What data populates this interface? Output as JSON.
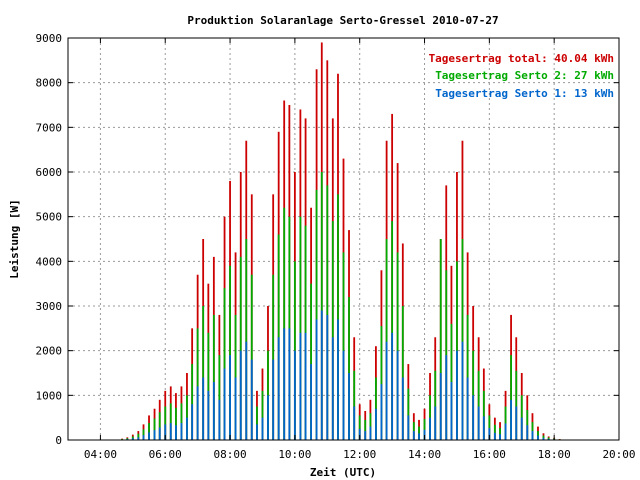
{
  "chart_data": {
    "type": "bar",
    "title": "Produktion Solaranlage Serto-Gressel 2010-07-27",
    "xlabel": "Zeit (UTC)",
    "ylabel": "Leistung [W]",
    "xlim": [
      3,
      20
    ],
    "ylim": [
      0,
      9000
    ],
    "x_ticks": [
      {
        "value": 4,
        "label": "04:00"
      },
      {
        "value": 6,
        "label": "06:00"
      },
      {
        "value": 8,
        "label": "08:00"
      },
      {
        "value": 10,
        "label": "10:00"
      },
      {
        "value": 12,
        "label": "12:00"
      },
      {
        "value": 14,
        "label": "14:00"
      },
      {
        "value": 16,
        "label": "16:00"
      },
      {
        "value": 18,
        "label": "18:00"
      },
      {
        "value": 20,
        "label": "20:00"
      }
    ],
    "y_ticks": [
      0,
      1000,
      2000,
      3000,
      4000,
      5000,
      6000,
      7000,
      8000,
      9000
    ],
    "grid": true,
    "legend_position": "top-right",
    "legend": [
      {
        "label": "Tagesertrag total: 40.04 kWh",
        "color": "#cc0000"
      },
      {
        "label": "Tagesertrag Serto 2: 27 kWh",
        "color": "#00aa00"
      },
      {
        "label": "Tagesertrag Serto 1: 13 kWh",
        "color": "#0066cc"
      }
    ],
    "series": [
      {
        "name": "Tagesertrag total: 40.04 kWh",
        "color": "#cc0000",
        "x": [
          4.5,
          4.67,
          4.83,
          5.0,
          5.17,
          5.33,
          5.5,
          5.67,
          5.83,
          6.0,
          6.17,
          6.33,
          6.5,
          6.67,
          6.83,
          7.0,
          7.17,
          7.33,
          7.5,
          7.67,
          7.83,
          8.0,
          8.17,
          8.33,
          8.5,
          8.67,
          8.83,
          9.0,
          9.17,
          9.33,
          9.5,
          9.67,
          9.83,
          10.0,
          10.17,
          10.33,
          10.5,
          10.67,
          10.83,
          11.0,
          11.17,
          11.33,
          11.5,
          11.67,
          11.83,
          12.0,
          12.17,
          12.33,
          12.5,
          12.67,
          12.83,
          13.0,
          13.17,
          13.33,
          13.5,
          13.67,
          13.83,
          14.0,
          14.17,
          14.33,
          14.5,
          14.67,
          14.83,
          15.0,
          15.17,
          15.33,
          15.5,
          15.67,
          15.83,
          16.0,
          16.17,
          16.33,
          16.5,
          16.67,
          16.83,
          17.0,
          17.17,
          17.33,
          17.5,
          17.67,
          17.83,
          18.0,
          18.17,
          18.33,
          18.5,
          18.67,
          18.83,
          19.0
        ],
        "values": [
          10,
          30,
          60,
          120,
          200,
          350,
          550,
          700,
          900,
          1100,
          1200,
          1050,
          1200,
          1500,
          2500,
          3700,
          4500,
          3500,
          4100,
          2800,
          5000,
          5800,
          4200,
          6000,
          6700,
          5500,
          1100,
          1600,
          3000,
          5500,
          6900,
          7600,
          7500,
          6000,
          7400,
          7200,
          5200,
          8300,
          8900,
          8500,
          7200,
          8200,
          6300,
          4700,
          2300,
          800,
          650,
          900,
          2100,
          3800,
          6700,
          7300,
          6200,
          4400,
          1700,
          600,
          450,
          700,
          1500,
          2300,
          4500,
          5700,
          3900,
          6000,
          6700,
          4200,
          3000,
          2300,
          1600,
          800,
          500,
          400,
          1100,
          2800,
          2300,
          1500,
          1000,
          600,
          300,
          150,
          80,
          50,
          20,
          10,
          5,
          3,
          2,
          0
        ]
      },
      {
        "name": "Tagesertrag Serto 2: 27 kWh",
        "color": "#00aa00",
        "x": [
          4.5,
          4.67,
          4.83,
          5.0,
          5.17,
          5.33,
          5.5,
          5.67,
          5.83,
          6.0,
          6.17,
          6.33,
          6.5,
          6.67,
          6.83,
          7.0,
          7.17,
          7.33,
          7.5,
          7.67,
          7.83,
          8.0,
          8.17,
          8.33,
          8.5,
          8.67,
          8.83,
          9.0,
          9.17,
          9.33,
          9.5,
          9.67,
          9.83,
          10.0,
          10.17,
          10.33,
          10.5,
          10.67,
          10.83,
          11.0,
          11.17,
          11.33,
          11.5,
          11.67,
          11.83,
          12.0,
          12.17,
          12.33,
          12.5,
          12.67,
          12.83,
          13.0,
          13.17,
          13.33,
          13.5,
          13.67,
          13.83,
          14.0,
          14.17,
          14.33,
          14.5,
          14.67,
          14.83,
          15.0,
          15.17,
          15.33,
          15.5,
          15.67,
          15.83,
          16.0,
          16.17,
          16.33,
          16.5,
          16.67,
          16.83,
          17.0,
          17.17,
          17.33,
          17.5,
          17.67,
          17.83,
          18.0,
          18.17,
          18.33,
          18.5,
          18.67,
          18.83,
          19.0
        ],
        "values": [
          7,
          20,
          40,
          80,
          140,
          240,
          380,
          480,
          620,
          750,
          820,
          720,
          820,
          1000,
          1700,
          2500,
          3000,
          2400,
          2800,
          1900,
          3400,
          3900,
          2800,
          4100,
          4500,
          3700,
          750,
          1100,
          2000,
          3700,
          4600,
          5200,
          5000,
          4000,
          5000,
          4800,
          3500,
          5600,
          6000,
          5700,
          4900,
          5500,
          4200,
          3200,
          1550,
          550,
          450,
          600,
          1400,
          2550,
          4500,
          4900,
          4200,
          3000,
          1150,
          400,
          300,
          470,
          1000,
          1550,
          4500,
          3800,
          2600,
          4000,
          4500,
          2800,
          2000,
          1550,
          1100,
          550,
          340,
          270,
          750,
          1900,
          1550,
          1000,
          670,
          400,
          200,
          100,
          55,
          35,
          14,
          7,
          3,
          2,
          1,
          0
        ]
      },
      {
        "name": "Tagesertrag Serto 1: 13 kWh",
        "color": "#0066cc",
        "x": [
          4.5,
          4.67,
          4.83,
          5.0,
          5.17,
          5.33,
          5.5,
          5.67,
          5.83,
          6.0,
          6.17,
          6.33,
          6.5,
          6.67,
          6.83,
          7.0,
          7.17,
          7.33,
          7.5,
          7.67,
          7.83,
          8.0,
          8.17,
          8.33,
          8.5,
          8.67,
          8.83,
          9.0,
          9.17,
          9.33,
          9.5,
          9.67,
          9.83,
          10.0,
          10.17,
          10.33,
          10.5,
          10.67,
          10.83,
          11.0,
          11.17,
          11.33,
          11.5,
          11.67,
          11.83,
          12.0,
          12.17,
          12.33,
          12.5,
          12.67,
          12.83,
          13.0,
          13.17,
          13.33,
          13.5,
          13.67,
          13.83,
          14.0,
          14.17,
          14.33,
          14.5,
          14.67,
          14.83,
          15.0,
          15.17,
          15.33,
          15.5,
          15.67,
          15.83,
          16.0,
          16.17,
          16.33,
          16.5,
          16.67,
          16.83,
          17.0,
          17.17,
          17.33,
          17.5,
          17.67,
          17.83,
          18.0,
          18.17,
          18.33,
          18.5,
          18.67,
          18.83,
          19.0
        ],
        "values": [
          3,
          10,
          20,
          40,
          60,
          110,
          170,
          220,
          280,
          350,
          380,
          330,
          380,
          500,
          800,
          1200,
          1400,
          1100,
          1300,
          900,
          1600,
          1900,
          1400,
          2000,
          2200,
          1800,
          350,
          500,
          1000,
          1800,
          2300,
          2500,
          2500,
          2000,
          2400,
          2400,
          1700,
          2700,
          2900,
          2800,
          2300,
          2700,
          2000,
          1500,
          750,
          250,
          200,
          300,
          700,
          1250,
          2200,
          2400,
          2000,
          1400,
          550,
          200,
          150,
          230,
          500,
          750,
          1500,
          1900,
          1300,
          2000,
          2200,
          1400,
          1000,
          750,
          530,
          270,
          160,
          130,
          370,
          900,
          750,
          500,
          330,
          200,
          100,
          50,
          25,
          15,
          6,
          3,
          2,
          1,
          1,
          0
        ]
      }
    ]
  }
}
